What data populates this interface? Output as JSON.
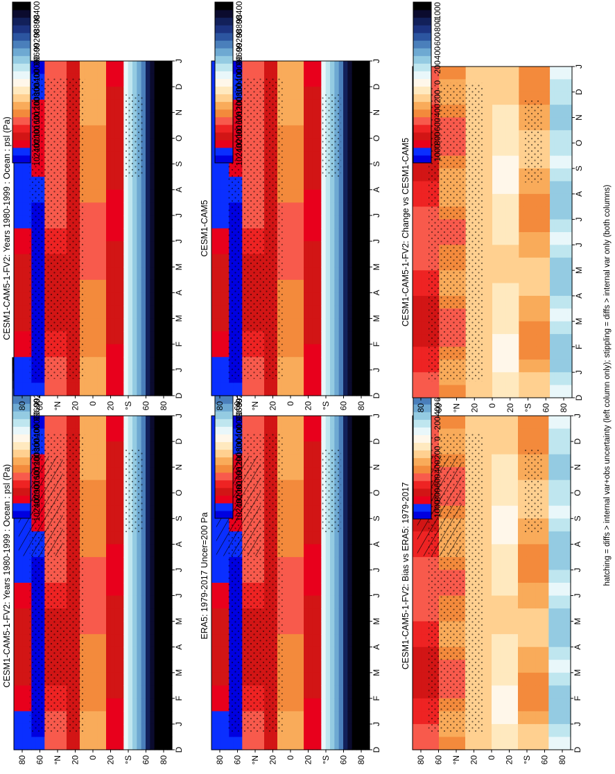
{
  "footnote": "hatching = diffs > internal var+obs uncertainty (left column only); stippling = diffs > internal var only (both columns)",
  "colorbars": {
    "abs": {
      "ticks": [
        "102400",
        "102000",
        "101600",
        "101200",
        "100800",
        "100400",
        "100000",
        "99600",
        "99200",
        "98800",
        "98400"
      ],
      "colors": [
        "#0000e0",
        "#0a2fff",
        "#e8001c",
        "#d21515",
        "#ee2323",
        "#f85a4c",
        "#f38a3c",
        "#f9ab5a",
        "#ffd090",
        "#ffe9bf",
        "#fff7ea",
        "#e9f7fa",
        "#bfe6ef",
        "#94cbe2",
        "#6ea9d2",
        "#4a7fbb",
        "#2c55a0",
        "#1c3380",
        "#12205a",
        "#0b0b2e",
        "#000000"
      ]
    },
    "diff": {
      "ticks": [
        "1000",
        "800",
        "600",
        "400",
        "200",
        "0",
        "-200",
        "-400",
        "-600",
        "-800",
        "-1000"
      ],
      "colors": [
        "#0000e0",
        "#0a2fff",
        "#e8001c",
        "#d21515",
        "#ee2323",
        "#f85a4c",
        "#f38a3c",
        "#f9ab5a",
        "#ffd090",
        "#ffe9bf",
        "#fff7ea",
        "#e9f7fa",
        "#bfe6ef",
        "#94cbe2",
        "#6ea9d2",
        "#4a7fbb",
        "#2c55a0",
        "#1c3380",
        "#12205a",
        "#0b0b2e",
        "#000000"
      ]
    }
  },
  "chart_data": [
    {
      "type": "heatmap",
      "title": "CESM1-CAM5-1-FV2: Years 1980-1999 : Ocean : psl (Pa)",
      "xlabel": "",
      "ylabel": "",
      "x_ticks": [
        "D",
        "J",
        "F",
        "M",
        "A",
        "M",
        "J",
        "J",
        "A",
        "S",
        "O",
        "N",
        "D",
        "J"
      ],
      "y_ticks": [
        "80",
        "60",
        "°N",
        "20",
        "0",
        "20",
        "°S",
        "60",
        "80"
      ],
      "colorbar": "abs",
      "hatching": true,
      "stippling": true
    },
    {
      "type": "heatmap",
      "title": "CESM1-CAM5-1-FV2: Years 1980-1999 : Ocean : psl (Pa)",
      "xlabel": "",
      "ylabel": "",
      "x_ticks": [
        "D",
        "J",
        "F",
        "M",
        "A",
        "M",
        "J",
        "J",
        "A",
        "S",
        "O",
        "N",
        "D",
        "J"
      ],
      "y_ticks": [
        "80",
        "60",
        "°N",
        "20",
        "0",
        "20",
        "°S",
        "60",
        "80"
      ],
      "colorbar": "abs",
      "hatching": false,
      "stippling": true
    },
    {
      "type": "heatmap",
      "title": "ERA5: 1979-2017 Uncer=200 Pa",
      "xlabel": "",
      "ylabel": "",
      "x_ticks": [
        "D",
        "J",
        "F",
        "M",
        "A",
        "M",
        "J",
        "J",
        "A",
        "S",
        "O",
        "N",
        "D",
        "J"
      ],
      "y_ticks": [
        "80",
        "60",
        "°N",
        "20",
        "0",
        "20",
        "°S",
        "60",
        "80"
      ],
      "colorbar": "abs",
      "hatching": true,
      "stippling": true
    },
    {
      "type": "heatmap",
      "title": "CESM1-CAM5",
      "xlabel": "",
      "ylabel": "",
      "x_ticks": [
        "D",
        "J",
        "F",
        "M",
        "A",
        "M",
        "J",
        "J",
        "A",
        "S",
        "O",
        "N",
        "D",
        "J"
      ],
      "y_ticks": [
        "80",
        "60",
        "°N",
        "20",
        "0",
        "20",
        "°S",
        "60",
        "80"
      ],
      "colorbar": "abs",
      "hatching": false,
      "stippling": true
    },
    {
      "type": "heatmap",
      "title": "CESM1-CAM5-1-FV2: Bias vs ERA5: 1979-2017",
      "xlabel": "",
      "ylabel": "",
      "x_ticks": [
        "D",
        "J",
        "F",
        "M",
        "A",
        "M",
        "J",
        "J",
        "A",
        "S",
        "O",
        "N",
        "D",
        "J"
      ],
      "y_ticks": [
        "80",
        "60",
        "°N",
        "20",
        "0",
        "20",
        "°S",
        "60",
        "80"
      ],
      "colorbar": "diff",
      "hatching": true,
      "stippling": true
    },
    {
      "type": "heatmap",
      "title": "CESM1-CAM5-1-FV2: Change vs CESM1-CAM5",
      "xlabel": "",
      "ylabel": "",
      "x_ticks": [
        "D",
        "J",
        "F",
        "M",
        "A",
        "M",
        "J",
        "J",
        "A",
        "S",
        "O",
        "N",
        "D",
        "J"
      ],
      "y_ticks": [
        "80",
        "60",
        "°N",
        "20",
        "0",
        "20",
        "°S",
        "60",
        "80"
      ],
      "colorbar": "diff",
      "hatching": false,
      "stippling": true
    }
  ]
}
